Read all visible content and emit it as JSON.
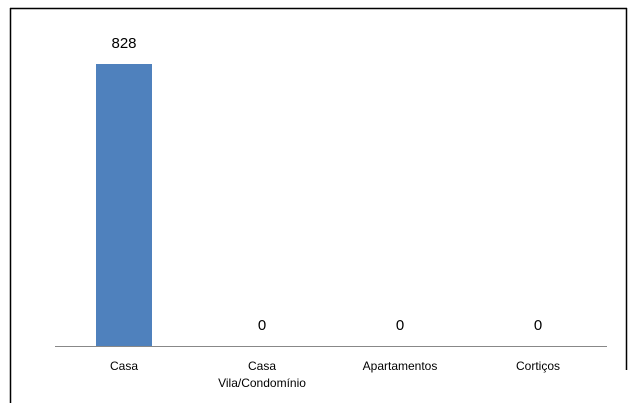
{
  "chart_data": {
    "type": "bar",
    "categories": [
      "Casa",
      "Casa Vila/Condomínio",
      "Apartamentos",
      "Cortiços"
    ],
    "values": [
      828,
      0,
      0,
      0
    ],
    "color": "#4f81bd"
  }
}
